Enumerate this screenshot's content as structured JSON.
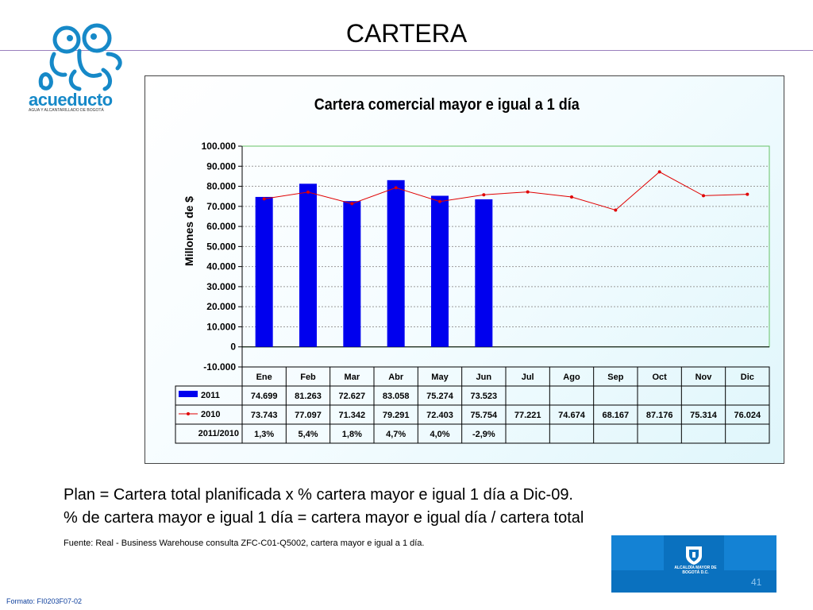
{
  "slide": {
    "title": "CARTERA",
    "page_number": "41",
    "format_code": "Formato: FI0203F07-02"
  },
  "logo": {
    "name": "acueducto",
    "tagline": "AGUA Y ALCANTARILLADO DE BOGOTÁ",
    "icon": "frog-logo-icon"
  },
  "branding": {
    "alcaldia_text": "ALCALDÍA MAYOR DE BOGOTÁ D.C.",
    "icon": "bogota-shield-icon"
  },
  "captions": {
    "line1": "Plan = Cartera total planificada x % cartera mayor e igual 1 día a Dic-09.",
    "line2": "% de cartera mayor e igual 1 día = cartera mayor e igual  día / cartera total",
    "source": "Fuente: Real - Business Warehouse consulta ZFC-C01-Q5002, cartera mayor  e igual a 1 día."
  },
  "colors": {
    "bar": "#0000ee",
    "line": "#e00000",
    "plot_border": "#66c266",
    "brand_blue": "#0a71bf",
    "logo_blue": "#1689c8"
  },
  "chart_data": {
    "type": "bar",
    "title": "Cartera comercial mayor e igual a 1 día",
    "ylabel": "Millones de $",
    "ylim": [
      -10000,
      100000
    ],
    "yticks": [
      "100.000",
      "90.000",
      "80.000",
      "70.000",
      "60.000",
      "50.000",
      "40.000",
      "30.000",
      "20.000",
      "10.000",
      "0",
      "-10.000"
    ],
    "grid": true,
    "categories": [
      "Ene",
      "Feb",
      "Mar",
      "Abr",
      "May",
      "Jun",
      "Jul",
      "Ago",
      "Sep",
      "Oct",
      "Nov",
      "Dic"
    ],
    "series": [
      {
        "name": "2011",
        "kind": "bar",
        "values": [
          74699,
          81263,
          72627,
          83058,
          75274,
          73523,
          null,
          null,
          null,
          null,
          null,
          null
        ],
        "labels": [
          "74.699",
          "81.263",
          "72.627",
          "83.058",
          "75.274",
          "73.523",
          "",
          "",
          "",
          "",
          "",
          ""
        ]
      },
      {
        "name": "2010",
        "kind": "line",
        "values": [
          73743,
          77097,
          71342,
          79291,
          72403,
          75754,
          77221,
          74674,
          68167,
          87176,
          75314,
          76024
        ],
        "labels": [
          "73.743",
          "77.097",
          "71.342",
          "79.291",
          "72.403",
          "75.754",
          "77.221",
          "74.674",
          "68.167",
          "87.176",
          "75.314",
          "76.024"
        ]
      }
    ],
    "ratio_row": {
      "name": "2011/2010",
      "values": [
        "1,3%",
        "5,4%",
        "1,8%",
        "4,7%",
        "4,0%",
        "-2,9%",
        "",
        "",
        "",
        "",
        "",
        ""
      ]
    }
  }
}
